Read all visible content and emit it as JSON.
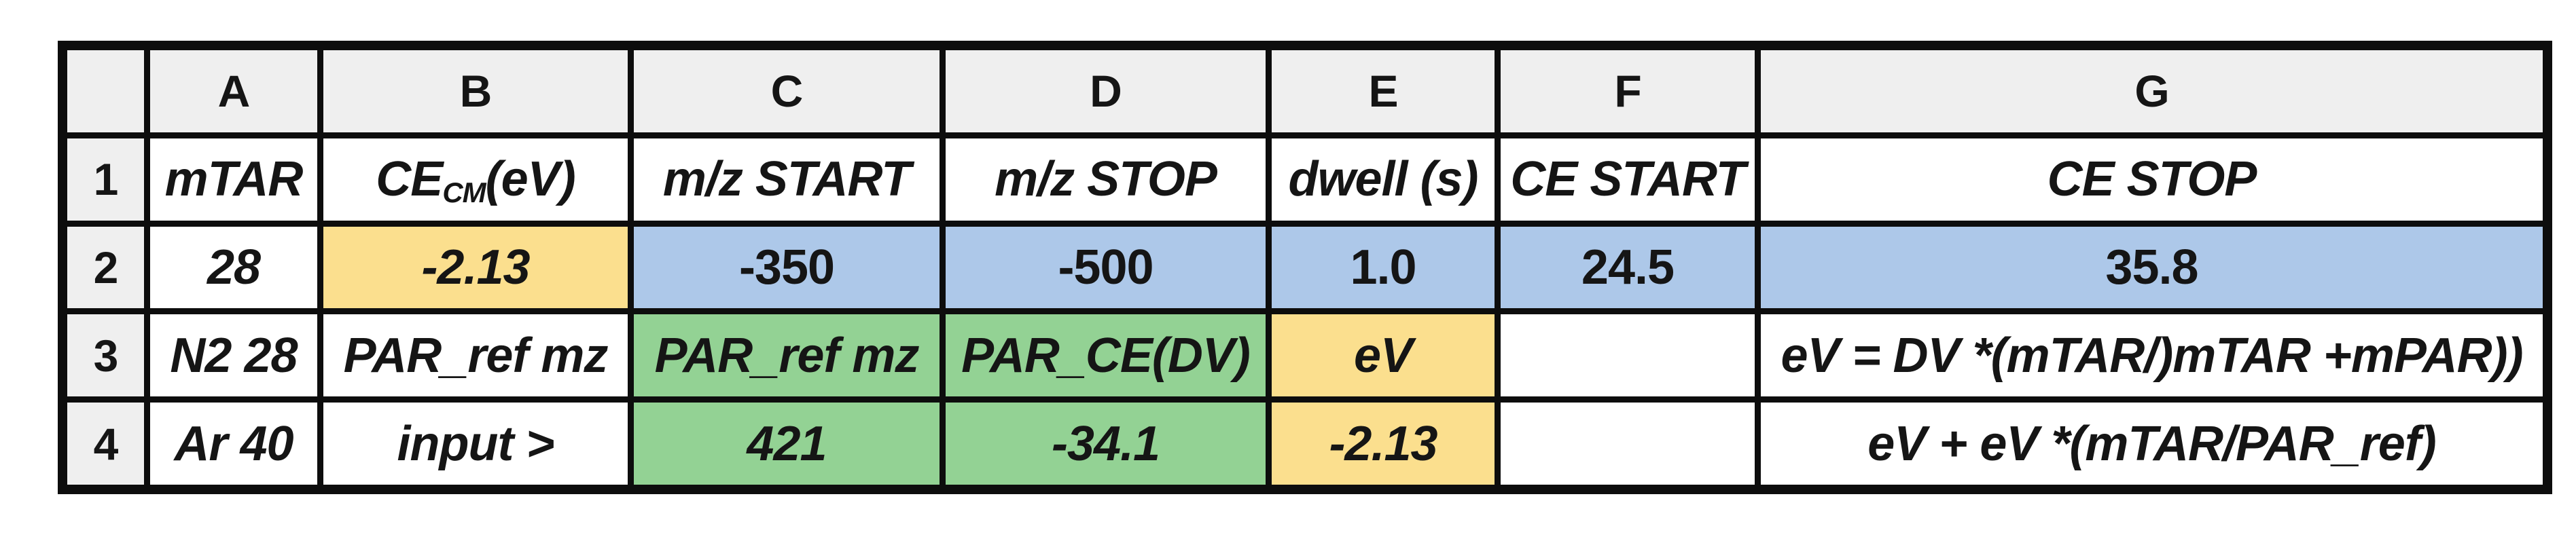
{
  "app": "spreadsheet-table",
  "palette": {
    "yellow": "#FBDF8E",
    "blue": "#ADC8E9",
    "green": "#93D294",
    "header_gray": "#EFEFEF",
    "grid_border": "#0D0D0D",
    "cell_white": "#FFFFFF"
  },
  "column_headers": {
    "corner": "",
    "a": "A",
    "b": "B",
    "c": "C",
    "d": "D",
    "e": "E",
    "f": "F",
    "g": "G"
  },
  "row_headers": {
    "r1": "1",
    "r2": "2",
    "r3": "3",
    "r4": "4"
  },
  "rows": {
    "r1": {
      "a": {
        "text": "mTAR"
      },
      "b": {
        "prefix": "CE",
        "sub": "CM",
        "suffix": "(eV)"
      },
      "c": {
        "text": "m/z START"
      },
      "d": {
        "text": "m/z STOP"
      },
      "e": {
        "text": "dwell (s)"
      },
      "f": {
        "text": "CE START"
      },
      "g": {
        "text": "CE STOP"
      }
    },
    "r2": {
      "a": {
        "text": "28"
      },
      "b": {
        "text": "-2.13",
        "bg": "#FBDF8E"
      },
      "c": {
        "text": "-350",
        "bg": "#ADC8E9"
      },
      "d": {
        "text": "-500",
        "bg": "#ADC8E9"
      },
      "e": {
        "text": "1.0",
        "bg": "#ADC8E9"
      },
      "f": {
        "text": "24.5",
        "bg": "#ADC8E9"
      },
      "g": {
        "text": "35.8",
        "bg": "#ADC8E9"
      }
    },
    "r3": {
      "a": {
        "text": "N2 28"
      },
      "b": {
        "text": "PAR_ref mz"
      },
      "c": {
        "text": "PAR_ref mz",
        "bg": "#93D294"
      },
      "d": {
        "text": "PAR_CE(DV)",
        "bg": "#93D294"
      },
      "e": {
        "text": "eV",
        "bg": "#FBDF8E"
      },
      "f": {
        "text": ""
      },
      "g": {
        "text": "eV = DV *(mTAR/)mTAR +mPAR))"
      }
    },
    "r4": {
      "a": {
        "text": "Ar 40"
      },
      "b": {
        "text": "input >"
      },
      "c": {
        "text": "421",
        "bg": "#93D294"
      },
      "d": {
        "text": "-34.1",
        "bg": "#93D294"
      },
      "e": {
        "text": "-2.13",
        "bg": "#FBDF8E"
      },
      "f": {
        "text": ""
      },
      "g": {
        "text": "eV + eV *(mTAR/PAR_ref)"
      }
    }
  }
}
